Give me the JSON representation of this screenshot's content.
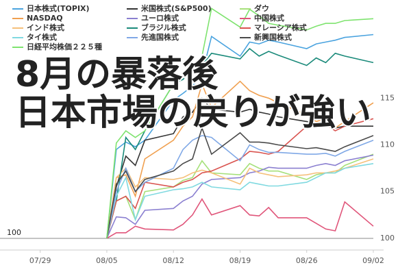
{
  "chart_data": {
    "type": "line",
    "annotation_lines": [
      "8月の暴落後",
      "日本市場の戻りが強い"
    ],
    "x": [
      "08/05",
      "08/06",
      "08/07",
      "08/08",
      "08/09",
      "08/12",
      "08/13",
      "08/14",
      "08/15",
      "08/16",
      "08/19",
      "08/20",
      "08/21",
      "08/22",
      "08/23",
      "08/26",
      "08/27",
      "08/28",
      "08/29",
      "08/30",
      "09/02"
    ],
    "xlim": [
      "07/26",
      "09/02"
    ],
    "xticks": [
      "07/29",
      "08/05",
      "08/12",
      "08/19",
      "08/26",
      "09/02"
    ],
    "ylim": [
      98.75,
      125.5
    ],
    "yticks": [
      100,
      105,
      110,
      115
    ],
    "reference_line": 100,
    "grid": false,
    "series": [
      {
        "name": "日本株式(TOPIX)",
        "color": "#4aa3df",
        "values": [
          100,
          109.5,
          110.3,
          109.8,
          110.5,
          114.8,
          115.5,
          116.3,
          117.5,
          121.6,
          119.5,
          121,
          120.8,
          121.2,
          121,
          120.3,
          120.8,
          121,
          121.2,
          121.5,
          121.8
        ]
      },
      {
        "name": "米国株式(S&P500)",
        "color": "#333333",
        "values": [
          100,
          105.5,
          108.8,
          107.8,
          110.5,
          111.2,
          113,
          113.5,
          115,
          113.8,
          113.5,
          113.8,
          113.5,
          113.3,
          113,
          112.5,
          112.3,
          112.5,
          111.8,
          112,
          112
        ]
      },
      {
        "name": "ダウ",
        "color": "#a6e07a",
        "values": [
          100,
          104,
          104.5,
          102,
          105,
          105.5,
          106.2,
          106.5,
          108.3,
          107,
          106.8,
          108,
          107.5,
          107.2,
          107.2,
          106.3,
          106.8,
          107,
          107,
          107.8,
          109
        ]
      },
      {
        "name": "NASDAQ",
        "color": "#f0a050",
        "values": [
          100,
          106.5,
          106.8,
          104.5,
          108.5,
          110.5,
          112,
          113,
          116.5,
          114,
          116.8,
          115.8,
          115.3,
          115,
          114.5,
          113.2,
          112.5,
          112.8,
          111.8,
          112.5,
          114.5
        ]
      },
      {
        "name": "ユーロ株式",
        "color": "#8a7fd0",
        "values": [
          100,
          102.3,
          102.2,
          101.5,
          103,
          103.2,
          104,
          104.5,
          105.8,
          106.3,
          106.5,
          107,
          107.2,
          107.6,
          107.5,
          107.5,
          107.8,
          108,
          107.8,
          108.3,
          108.9
        ]
      },
      {
        "name": "中国株式",
        "color": "#e0557a",
        "values": [
          100,
          100.6,
          100.6,
          101.3,
          101,
          100.9,
          101.5,
          102.5,
          104.2,
          102.5,
          103.5,
          102.5,
          102.4,
          103.3,
          102.2,
          102.2,
          101.6,
          101,
          100.8,
          103.9,
          101.3
        ]
      },
      {
        "name": "インド株式",
        "color": "#f5c07a",
        "values": [
          100,
          106.5,
          107.5,
          105.5,
          106.5,
          106.3,
          106.5,
          107,
          107.3,
          107,
          105.8,
          107.5,
          107,
          106.8,
          106.6,
          106.8,
          107,
          107,
          107.2,
          107.5,
          108.5
        ]
      },
      {
        "name": "ブラジル株式",
        "color": "#1a8a7a",
        "values": [
          100,
          104,
          110.8,
          109.5,
          111.5,
          116.5,
          117,
          118,
          118.5,
          119.8,
          119.2,
          120.3,
          119.5,
          120,
          119.6,
          118.5,
          119.3,
          118.8,
          119.8,
          119.5,
          118.8
        ]
      },
      {
        "name": "マレーシア株式",
        "color": "#d9534f",
        "values": [
          100,
          104,
          104.5,
          103.2,
          106,
          105.5,
          106,
          106.3,
          107,
          107.2,
          108.5,
          109.3,
          109.2,
          109,
          109.3,
          112,
          112,
          112.2,
          111.5,
          112,
          112.8
        ]
      },
      {
        "name": "タイ株式",
        "color": "#7fd9e0",
        "values": [
          100,
          104.5,
          106.5,
          102,
          104.5,
          105.2,
          105.3,
          105.5,
          106,
          105.5,
          105.2,
          106,
          105.8,
          105.6,
          105.6,
          106,
          106.5,
          107,
          107,
          107.5,
          108
        ]
      },
      {
        "name": "先進国株式",
        "color": "#7fa8e6",
        "values": [
          100,
          105,
          107.5,
          105,
          106,
          107.5,
          109.5,
          110.5,
          111,
          110.8,
          108.3,
          110,
          109.5,
          109.2,
          109.2,
          109,
          109,
          109.1,
          108.8,
          109.3,
          110.5
        ]
      },
      {
        "name": "新興国株式",
        "color": "#4a4a4a",
        "values": [
          100,
          105.8,
          107.2,
          105,
          106.3,
          107.2,
          108,
          108.5,
          111.8,
          109,
          111.3,
          110.3,
          110.3,
          110.2,
          110,
          109.6,
          109.7,
          109.5,
          109.3,
          109.8,
          111
        ]
      },
      {
        "name": "日経平均株価２２５種",
        "color": "#7ee36e",
        "values": [
          100,
          110.2,
          111.5,
          110.8,
          111.5,
          116.5,
          117.3,
          118.5,
          119.5,
          124.6,
          122.6,
          124.5,
          123.8,
          123,
          122.8,
          122.3,
          122.7,
          123,
          123,
          123.3,
          123.5
        ]
      }
    ]
  }
}
